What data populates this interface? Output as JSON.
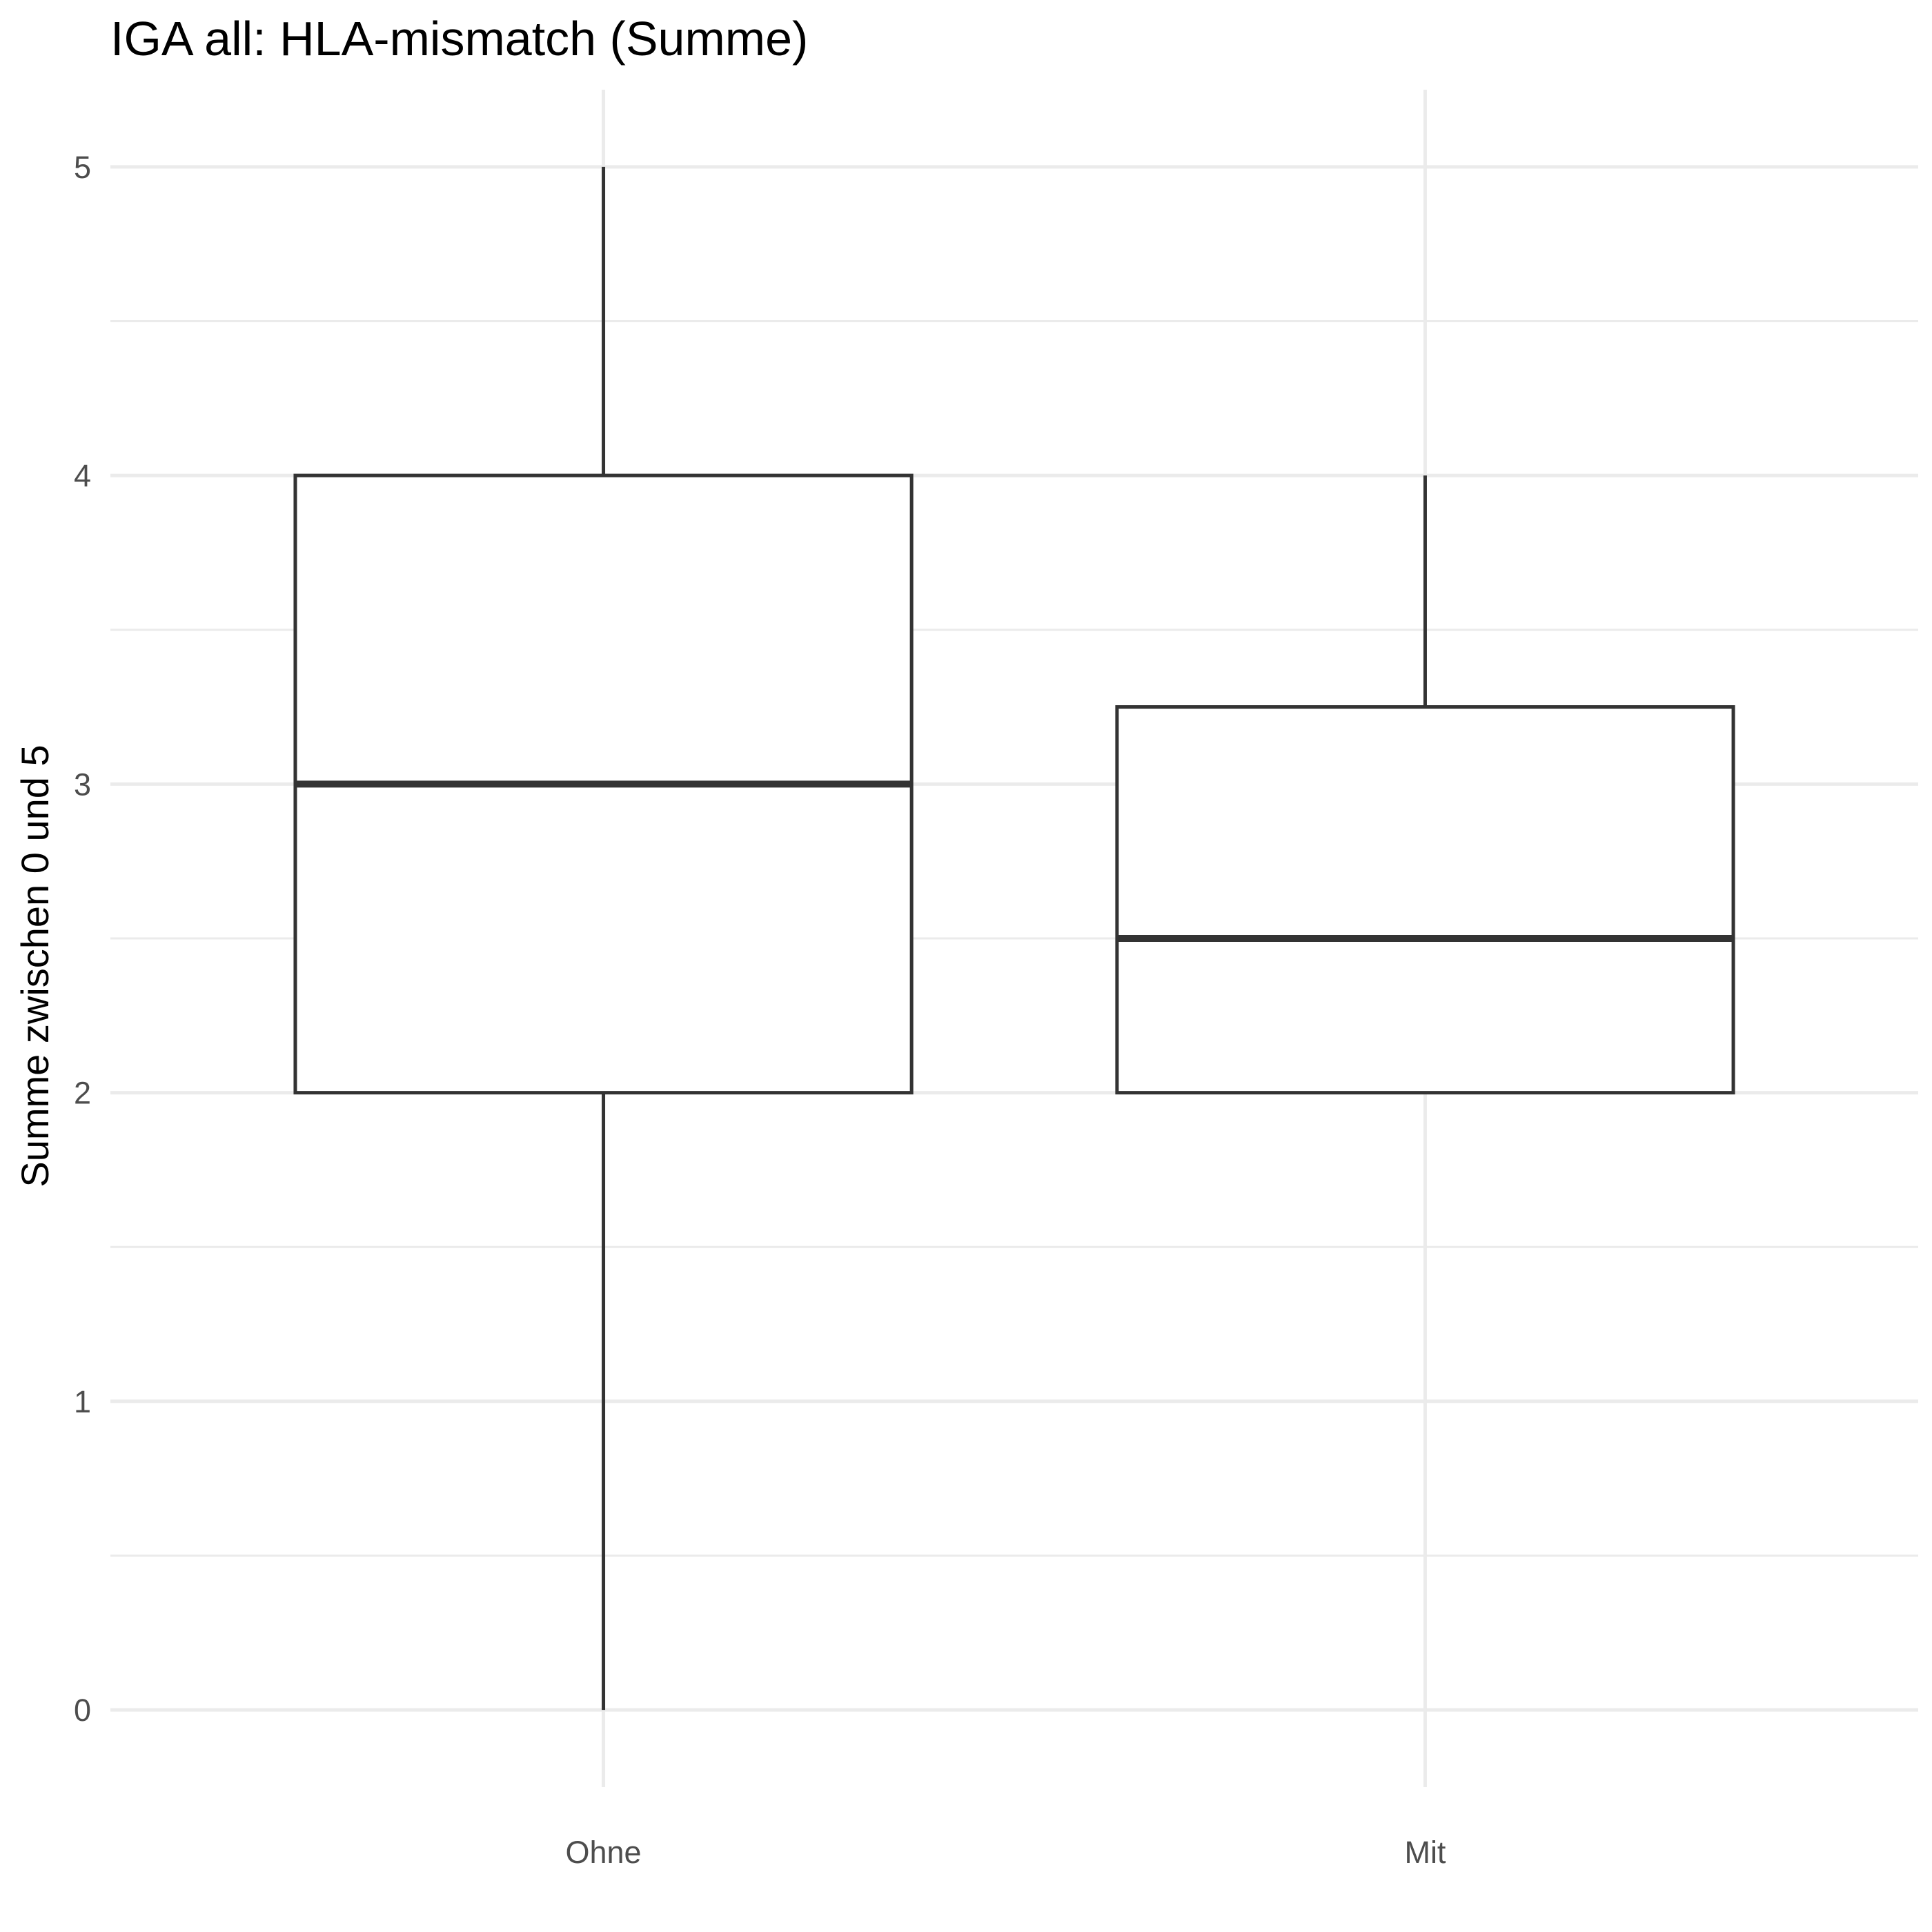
{
  "chart_data": {
    "type": "boxplot",
    "title": "IGA all: HLA-mismatch (Summe)",
    "xlabel": "",
    "ylabel": "Summe zwischen 0 und 5",
    "ylim": [
      -0.25,
      5.25
    ],
    "y_ticks": [
      0,
      1,
      2,
      3,
      4,
      5
    ],
    "y_tick_labels": [
      "0",
      "1",
      "2",
      "3",
      "4",
      "5"
    ],
    "categories": [
      "Ohne",
      "Mit"
    ],
    "boxes": [
      {
        "category": "Ohne",
        "min": 0,
        "q1": 2,
        "median": 3,
        "q3": 4,
        "max": 5
      },
      {
        "category": "Mit",
        "min": 2,
        "q1": 2,
        "median": 2.5,
        "q3": 3.25,
        "max": 4
      }
    ],
    "grid": true,
    "legend": "none",
    "colors": {
      "box_fill": "#ffffff",
      "box_stroke": "#333333",
      "grid": "#ebebeb",
      "tick_text": "#4d4d4d"
    }
  }
}
